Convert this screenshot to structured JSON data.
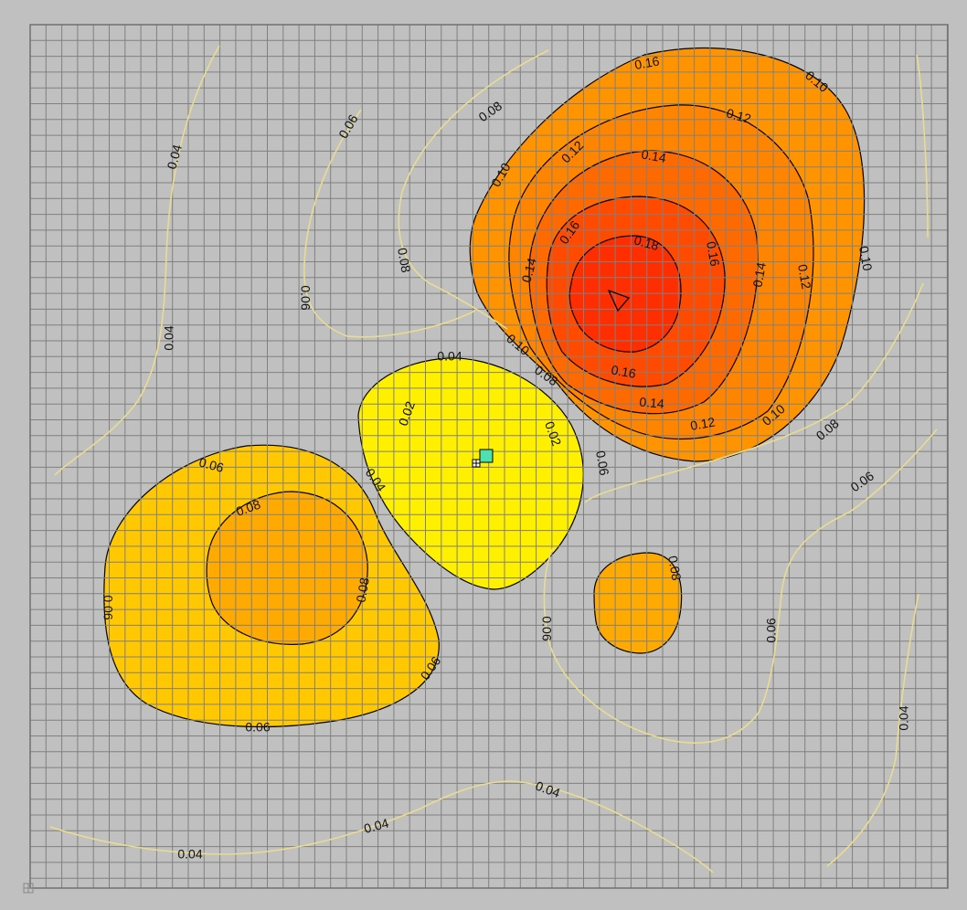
{
  "chart_data": {
    "type": "contour",
    "grid": true,
    "fill_colors": {
      "0.02": "#fff000",
      "0.06": "#ffc800",
      "0.08": "#ffaa00",
      "0.10": "#ff9400",
      "0.12": "#ff8400",
      "0.14": "#ff6a00",
      "0.16": "#ff4a00",
      "0.18": "#ff2e00"
    },
    "line_colors": {
      "filled": "#000000",
      "unfilled": "#e8dc90"
    },
    "regions": [
      {
        "name": "upper-right peak",
        "levels": [
          0.1,
          0.12,
          0.14,
          0.16,
          0.18
        ],
        "peak_marker": true
      },
      {
        "name": "center minimum",
        "levels": [
          0.02
        ],
        "marker": true
      },
      {
        "name": "left lobe",
        "levels": [
          0.06,
          0.08
        ]
      },
      {
        "name": "lower-center lobe",
        "levels": [
          0.08
        ]
      }
    ],
    "labels": [
      {
        "text": "0.16",
        "tx": 708,
        "ty": 70,
        "rot": -10
      },
      {
        "text": "0.10",
        "tx": 893,
        "ty": 90,
        "rot": 40
      },
      {
        "text": "0.12",
        "tx": 808,
        "ty": 128,
        "rot": 15
      },
      {
        "text": "0.12",
        "tx": 627,
        "ty": 167,
        "rot": -45
      },
      {
        "text": "0.14",
        "tx": 715,
        "ty": 172,
        "rot": 10
      },
      {
        "text": "0.10",
        "tx": 549,
        "ty": 192,
        "rot": -60
      },
      {
        "text": "0.16",
        "tx": 624,
        "ty": 255,
        "rot": -55
      },
      {
        "text": "0.18",
        "tx": 707,
        "ty": 267,
        "rot": 15
      },
      {
        "text": "0.16",
        "tx": 779,
        "ty": 278,
        "rot": 80
      },
      {
        "text": "0.14",
        "tx": 580,
        "ty": 296,
        "rot": -75
      },
      {
        "text": "0.14",
        "tx": 832,
        "ty": 301,
        "rot": -80
      },
      {
        "text": "0.12",
        "tx": 879,
        "ty": 303,
        "rot": 80
      },
      {
        "text": "0.10",
        "tx": 946,
        "ty": 283,
        "rot": 80
      },
      {
        "text": "0.10",
        "tx": 566,
        "ty": 378,
        "rot": 40
      },
      {
        "text": "0.08",
        "tx": 597,
        "ty": 412,
        "rot": 35
      },
      {
        "text": "0.16",
        "tx": 682,
        "ty": 408,
        "rot": 10
      },
      {
        "text": "0.14",
        "tx": 713,
        "ty": 442,
        "rot": 5
      },
      {
        "text": "0.12",
        "tx": 769,
        "ty": 465,
        "rot": -10
      },
      {
        "text": "0.10",
        "tx": 847,
        "ty": 455,
        "rot": -40
      },
      {
        "text": "0.08",
        "tx": 906,
        "ty": 471,
        "rot": -40
      },
      {
        "text": "0.06",
        "tx": 944,
        "ty": 528,
        "rot": -35
      },
      {
        "text": "0.04",
        "tx": 492,
        "ty": 391,
        "rot": 0
      },
      {
        "text": "0.02",
        "tx": 446,
        "ty": 453,
        "rot": -70
      },
      {
        "text": "0.02",
        "tx": 604,
        "ty": 475,
        "rot": 70
      },
      {
        "text": "0.06",
        "tx": 658,
        "ty": 507,
        "rot": 80
      },
      {
        "text": "0.04",
        "tx": 410,
        "ty": 526,
        "rot": 55
      },
      {
        "text": "0.06",
        "tx": 231,
        "ty": 510,
        "rot": 15
      },
      {
        "text": "0.08",
        "tx": 272,
        "ty": 557,
        "rot": -20
      },
      {
        "text": "0.08",
        "tx": 398,
        "ty": 646,
        "rot": -80
      },
      {
        "text": "0.06",
        "tx": 117,
        "ty": 665,
        "rot": 90
      },
      {
        "text": "0.06",
        "tx": 472,
        "ty": 732,
        "rot": -55
      },
      {
        "text": "0.06",
        "tx": 282,
        "ty": 797,
        "rot": 0
      },
      {
        "text": "0.08",
        "tx": 737,
        "ty": 622,
        "rot": 80
      },
      {
        "text": "0.06",
        "tx": 597,
        "ty": 688,
        "rot": 90
      },
      {
        "text": "0.06",
        "tx": 845,
        "ty": 690,
        "rot": -90
      },
      {
        "text": "0.04",
        "tx": 192,
        "ty": 172,
        "rot": -75
      },
      {
        "text": "0.06",
        "tx": 382,
        "ty": 139,
        "rot": -60
      },
      {
        "text": "0.08",
        "tx": 537,
        "ty": 123,
        "rot": -35
      },
      {
        "text": "0.08",
        "tx": 441,
        "ty": 285,
        "rot": 80
      },
      {
        "text": "0.06",
        "tx": 333,
        "ty": 326,
        "rot": 90
      },
      {
        "text": "0.04",
        "tx": 186,
        "ty": 370,
        "rot": -90
      },
      {
        "text": "0.04",
        "tx": 599,
        "ty": 865,
        "rot": 20
      },
      {
        "text": "0.04",
        "tx": 412,
        "ty": 905,
        "rot": -15
      },
      {
        "text": "0.04",
        "tx": 208,
        "ty": 936,
        "rot": 0
      },
      {
        "text": "0.04",
        "tx": 990,
        "ty": 786,
        "rot": -90
      }
    ]
  }
}
